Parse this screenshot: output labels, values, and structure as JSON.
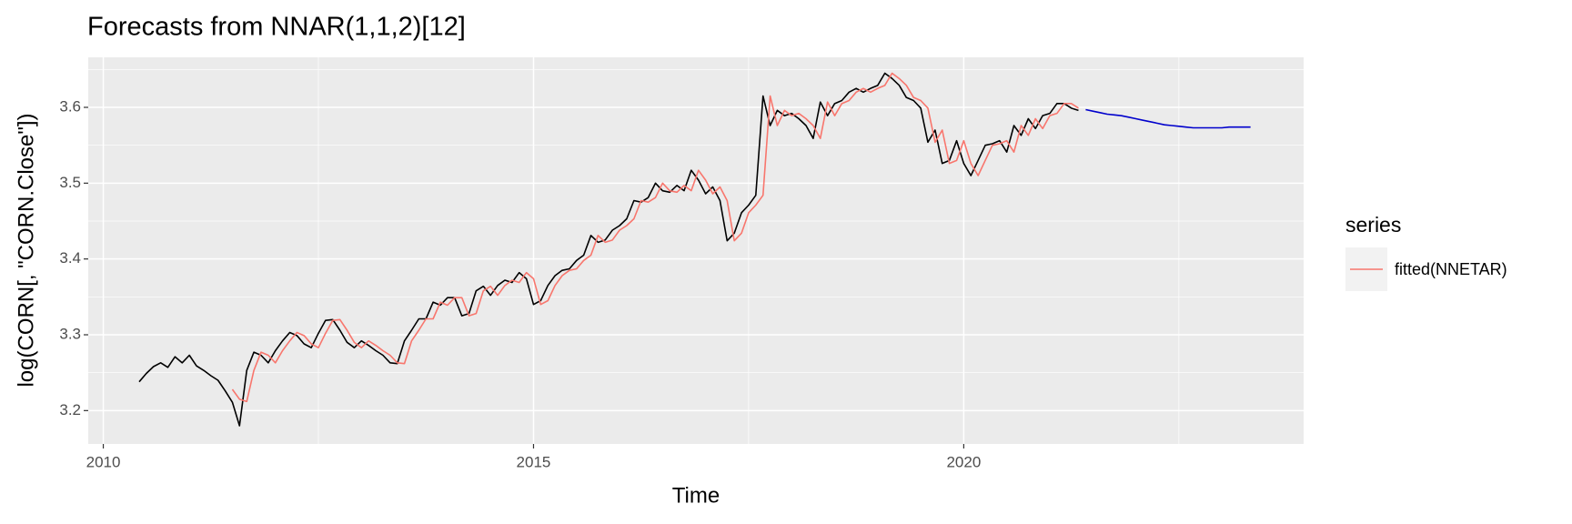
{
  "chart_data": {
    "type": "line",
    "title": "Forecasts from NNAR(1,1,2)[12]",
    "x_label": "Time",
    "y_label": "log(CORN[, \"CORN.Close\"])",
    "legend_title": "series",
    "grid": true,
    "xlim": [
      2009.825,
      2023.95
    ],
    "xticks": [
      2010,
      2015,
      2020
    ],
    "ylim": [
      3.156,
      3.666
    ],
    "yticks": [
      3.2,
      3.3,
      3.4,
      3.5,
      3.6
    ],
    "x": [
      2010.417,
      2010.5,
      2010.583,
      2010.667,
      2010.75,
      2010.833,
      2010.917,
      2011.0,
      2011.083,
      2011.167,
      2011.25,
      2011.333,
      2011.417,
      2011.5,
      2011.583,
      2011.667,
      2011.75,
      2011.833,
      2011.917,
      2012.0,
      2012.083,
      2012.167,
      2012.25,
      2012.333,
      2012.417,
      2012.5,
      2012.583,
      2012.667,
      2012.75,
      2012.833,
      2012.917,
      2013.0,
      2013.083,
      2013.167,
      2013.25,
      2013.333,
      2013.417,
      2013.5,
      2013.583,
      2013.667,
      2013.75,
      2013.833,
      2013.917,
      2014.0,
      2014.083,
      2014.167,
      2014.25,
      2014.333,
      2014.417,
      2014.5,
      2014.583,
      2014.667,
      2014.75,
      2014.833,
      2014.917,
      2015.0,
      2015.083,
      2015.167,
      2015.25,
      2015.333,
      2015.417,
      2015.5,
      2015.583,
      2015.667,
      2015.75,
      2015.833,
      2015.917,
      2016.0,
      2016.083,
      2016.167,
      2016.25,
      2016.333,
      2016.417,
      2016.5,
      2016.583,
      2016.667,
      2016.75,
      2016.833,
      2016.917,
      2017.0,
      2017.083,
      2017.167,
      2017.25,
      2017.333,
      2017.417,
      2017.5,
      2017.583,
      2017.667,
      2017.75,
      2017.833,
      2017.917,
      2018.0,
      2018.083,
      2018.167,
      2018.25,
      2018.333,
      2018.417,
      2018.5,
      2018.583,
      2018.667,
      2018.75,
      2018.833,
      2018.917,
      2019.0,
      2019.083,
      2019.167,
      2019.25,
      2019.333,
      2019.417,
      2019.5,
      2019.583,
      2019.667,
      2019.75,
      2019.833,
      2019.917,
      2020.0,
      2020.083,
      2020.167,
      2020.25,
      2020.333,
      2020.417,
      2020.5,
      2020.583,
      2020.667,
      2020.75,
      2020.833,
      2020.917,
      2021.0,
      2021.083,
      2021.167,
      2021.25,
      2021.333,
      2021.417,
      2021.5,
      2021.583,
      2021.667,
      2021.75,
      2021.833,
      2021.917,
      2022.0,
      2022.083,
      2022.167,
      2022.25,
      2022.333,
      2022.417,
      2022.5,
      2022.583,
      2022.667,
      2022.75,
      2022.833,
      2022.917,
      2023.0,
      2023.083,
      2023.167,
      2023.25,
      2023.333
    ],
    "series": [
      {
        "color": "#000000",
        "values": [
          3.238,
          3.249,
          3.258,
          3.263,
          3.257,
          3.271,
          3.263,
          3.273,
          3.259,
          3.253,
          3.246,
          3.24,
          3.226,
          3.211,
          3.18,
          3.253,
          3.277,
          3.273,
          3.263,
          3.279,
          3.292,
          3.303,
          3.299,
          3.288,
          3.283,
          3.302,
          3.319,
          3.32,
          3.306,
          3.29,
          3.283,
          3.292,
          3.286,
          3.279,
          3.273,
          3.263,
          3.262,
          3.292,
          3.306,
          3.321,
          3.321,
          3.343,
          3.339,
          3.349,
          3.349,
          3.325,
          3.328,
          3.358,
          3.364,
          3.352,
          3.365,
          3.372,
          3.369,
          3.382,
          3.374,
          3.34,
          3.345,
          3.365,
          3.378,
          3.385,
          3.387,
          3.398,
          3.405,
          3.431,
          3.422,
          3.425,
          3.438,
          3.444,
          3.453,
          3.477,
          3.475,
          3.481,
          3.5,
          3.49,
          3.488,
          3.497,
          3.49,
          3.517,
          3.504,
          3.486,
          3.495,
          3.477,
          3.424,
          3.434,
          3.461,
          3.471,
          3.484,
          3.615,
          3.576,
          3.596,
          3.589,
          3.592,
          3.585,
          3.576,
          3.559,
          3.607,
          3.589,
          3.605,
          3.609,
          3.62,
          3.625,
          3.62,
          3.625,
          3.629,
          3.645,
          3.638,
          3.629,
          3.613,
          3.609,
          3.599,
          3.554,
          3.57,
          3.526,
          3.53,
          3.556,
          3.526,
          3.51,
          3.53,
          3.55,
          3.552,
          3.556,
          3.541,
          3.576,
          3.563,
          3.585,
          3.572,
          3.589,
          3.592,
          3.605,
          3.605,
          3.599,
          3.596,
          null,
          null,
          null,
          null,
          null,
          null,
          null,
          null,
          null,
          null,
          null,
          null,
          null,
          null,
          null,
          null,
          null,
          null,
          null,
          null,
          null,
          null,
          null,
          null
        ]
      },
      {
        "name": "fitted(NNETAR)",
        "color": "#f8766d",
        "values": [
          null,
          null,
          null,
          null,
          null,
          null,
          null,
          null,
          null,
          null,
          null,
          null,
          null,
          3.228,
          3.215,
          3.212,
          3.253,
          3.277,
          3.273,
          3.263,
          3.279,
          3.292,
          3.303,
          3.299,
          3.288,
          3.283,
          3.302,
          3.319,
          3.32,
          3.306,
          3.29,
          3.283,
          3.292,
          3.286,
          3.279,
          3.273,
          3.263,
          3.262,
          3.292,
          3.306,
          3.321,
          3.321,
          3.343,
          3.339,
          3.349,
          3.349,
          3.325,
          3.328,
          3.358,
          3.364,
          3.352,
          3.365,
          3.372,
          3.369,
          3.382,
          3.374,
          3.34,
          3.345,
          3.365,
          3.378,
          3.385,
          3.387,
          3.398,
          3.405,
          3.431,
          3.422,
          3.425,
          3.438,
          3.444,
          3.453,
          3.477,
          3.475,
          3.481,
          3.5,
          3.49,
          3.488,
          3.497,
          3.49,
          3.517,
          3.504,
          3.486,
          3.495,
          3.477,
          3.424,
          3.434,
          3.461,
          3.471,
          3.484,
          3.615,
          3.576,
          3.596,
          3.589,
          3.592,
          3.585,
          3.576,
          3.559,
          3.607,
          3.589,
          3.605,
          3.609,
          3.62,
          3.625,
          3.62,
          3.625,
          3.629,
          3.645,
          3.638,
          3.629,
          3.613,
          3.609,
          3.599,
          3.554,
          3.57,
          3.526,
          3.53,
          3.556,
          3.526,
          3.51,
          3.53,
          3.55,
          3.552,
          3.556,
          3.541,
          3.576,
          3.563,
          3.585,
          3.572,
          3.589,
          3.592,
          3.605,
          3.605,
          3.599,
          null,
          null,
          null,
          null,
          null,
          null,
          null,
          null,
          null,
          null,
          null,
          null,
          null,
          null,
          null,
          null,
          null,
          null,
          null,
          null,
          null,
          null,
          null,
          null
        ]
      },
      {
        "color": "#0000cc",
        "values": [
          null,
          null,
          null,
          null,
          null,
          null,
          null,
          null,
          null,
          null,
          null,
          null,
          null,
          null,
          null,
          null,
          null,
          null,
          null,
          null,
          null,
          null,
          null,
          null,
          null,
          null,
          null,
          null,
          null,
          null,
          null,
          null,
          null,
          null,
          null,
          null,
          null,
          null,
          null,
          null,
          null,
          null,
          null,
          null,
          null,
          null,
          null,
          null,
          null,
          null,
          null,
          null,
          null,
          null,
          null,
          null,
          null,
          null,
          null,
          null,
          null,
          null,
          null,
          null,
          null,
          null,
          null,
          null,
          null,
          null,
          null,
          null,
          null,
          null,
          null,
          null,
          null,
          null,
          null,
          null,
          null,
          null,
          null,
          null,
          null,
          null,
          null,
          null,
          null,
          null,
          null,
          null,
          null,
          null,
          null,
          null,
          null,
          null,
          null,
          null,
          null,
          null,
          null,
          null,
          null,
          null,
          null,
          null,
          null,
          null,
          null,
          null,
          null,
          null,
          null,
          null,
          null,
          null,
          null,
          null,
          null,
          null,
          null,
          null,
          null,
          null,
          null,
          null,
          null,
          null,
          null,
          null,
          3.597,
          3.595,
          3.593,
          3.591,
          3.59,
          3.589,
          3.587,
          3.585,
          3.583,
          3.581,
          3.579,
          3.577,
          3.576,
          3.575,
          3.574,
          3.573,
          3.573,
          3.573,
          3.573,
          3.573,
          3.574,
          3.574,
          3.574,
          3.574
        ]
      }
    ]
  }
}
